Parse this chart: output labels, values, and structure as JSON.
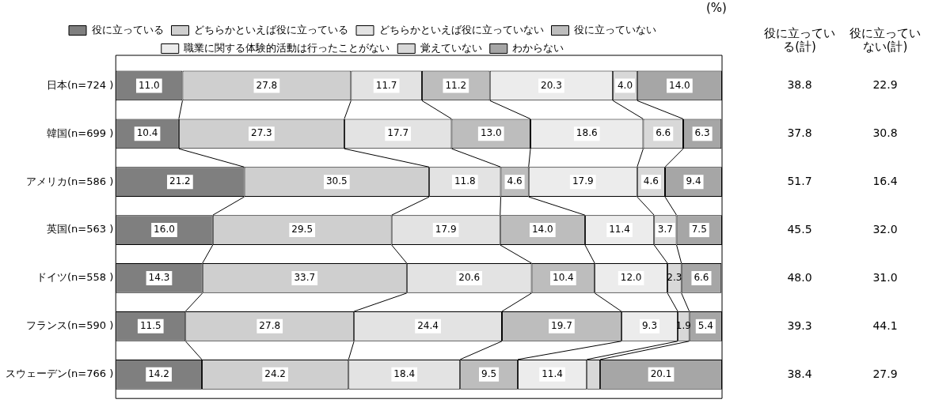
{
  "chart_data": {
    "type": "bar",
    "orientation": "horizontal",
    "stacked": true,
    "legend": "top",
    "grid": false,
    "tick_labels": "y",
    "xlim": [
      0,
      100
    ],
    "categories": [
      "日本(n=724 )",
      "韓国(n=699 )",
      "アメリカ(n=586 )",
      "英国(n=563 )",
      "ドイツ(n=558 )",
      "フランス(n=590 )",
      "スウェーデン(n=766 )"
    ],
    "series": [
      {
        "name": "役に立っている",
        "color": "#7f7f7f",
        "values": [
          11.0,
          10.4,
          21.2,
          16.0,
          14.3,
          11.5,
          14.2
        ],
        "value_labels": [
          "11.0",
          "10.4",
          "21.2",
          "16.0",
          "14.3",
          "11.5",
          "14.2"
        ]
      },
      {
        "name": "どちらかといえば役に立っている",
        "color": "#cfcfcf",
        "values": [
          27.8,
          27.3,
          30.5,
          29.5,
          33.7,
          27.8,
          24.2
        ],
        "value_labels": [
          "27.8",
          "27.3",
          "30.5",
          "29.5",
          "33.7",
          "27.8",
          "24.2"
        ]
      },
      {
        "name": "どちらかといえば役に立っていない",
        "color": "#e3e3e3",
        "values": [
          11.7,
          17.7,
          11.8,
          17.9,
          20.6,
          24.4,
          18.4
        ],
        "value_labels": [
          "11.7",
          "17.7",
          "11.8",
          "17.9",
          "20.6",
          "24.4",
          "18.4"
        ]
      },
      {
        "name": "役に立っていない",
        "color": "#bdbdbd",
        "values": [
          11.2,
          13.0,
          4.6,
          14.0,
          10.4,
          19.7,
          9.5
        ],
        "value_labels": [
          "11.2",
          "13.0",
          "4.6",
          "14.0",
          "10.4",
          "19.7",
          "9.5"
        ]
      },
      {
        "name": "職業に関する体験的活動は行ったことがない",
        "color": "#ececec",
        "values": [
          20.3,
          18.6,
          17.9,
          11.4,
          12.0,
          9.3,
          11.4
        ],
        "value_labels": [
          "20.3",
          "18.6",
          "17.9",
          "11.4",
          "12.0",
          "9.3",
          "11.4"
        ]
      },
      {
        "name": "覚えていない",
        "color": "#d8d8d8",
        "values": [
          4.0,
          6.6,
          4.6,
          3.7,
          2.3,
          1.9,
          2.2
        ],
        "value_labels": [
          "4.0",
          "6.6",
          "4.6",
          "3.7",
          "2.3",
          "1.9",
          null
        ]
      },
      {
        "name": "わからない",
        "color": "#a6a6a6",
        "values": [
          14.0,
          6.3,
          9.4,
          7.5,
          6.6,
          5.4,
          20.1
        ],
        "value_labels": [
          "14.0",
          "6.3",
          "9.4",
          "7.5",
          "6.6",
          "5.4",
          "20.1"
        ]
      }
    ],
    "annotations": [
      "(%)",
      "役に立っている(計)",
      "役に立っていない(計)",
      "38.8",
      "22.9",
      "37.8",
      "30.8",
      "51.7",
      "16.4",
      "45.5",
      "32.0",
      "48.0",
      "31.0",
      "39.3",
      "44.1",
      "38.4",
      "27.9"
    ]
  }
}
